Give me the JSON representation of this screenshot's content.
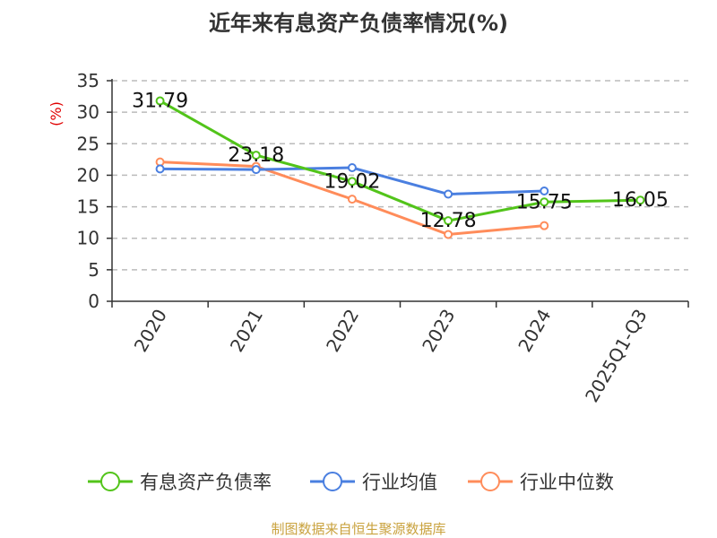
{
  "chart_data": {
    "type": "line",
    "title": "近年来有息资产负债率情况(%)",
    "ylabel": "(%)",
    "xlabel": "",
    "ylim": [
      0,
      35
    ],
    "yticks": [
      0,
      5,
      10,
      15,
      20,
      25,
      30,
      35
    ],
    "grid": true,
    "legend_position": "bottom",
    "categories": [
      "2020",
      "2021",
      "2022",
      "2023",
      "2024",
      "2025Q1-Q3"
    ],
    "series": [
      {
        "name": "有息资产负债率",
        "color": "#52c41a",
        "values": [
          31.79,
          23.18,
          19.02,
          12.78,
          15.75,
          16.05
        ],
        "labels": [
          "31.79",
          "23.18",
          "19.02",
          "12.78",
          "15.75",
          "16.05"
        ]
      },
      {
        "name": "行业均值",
        "color": "#4a7fe0",
        "values": [
          21.0,
          20.9,
          21.2,
          17.0,
          17.5,
          null
        ]
      },
      {
        "name": "行业中位数",
        "color": "#ff8c5a",
        "values": [
          22.1,
          21.4,
          16.2,
          10.6,
          12.0,
          null
        ]
      }
    ]
  },
  "footer": "制图数据来自恒生聚源数据库"
}
